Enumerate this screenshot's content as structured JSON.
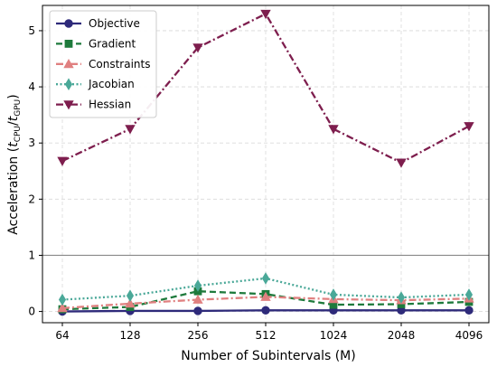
{
  "chart_data": {
    "type": "line",
    "xlabel": "Number of Subintervals (M)",
    "ylabel": "Acceleration (t_CPU / t_GPU)",
    "ylabel_parts": {
      "prefix": "Acceleration (",
      "t1": "t",
      "s1": "CPU",
      "slash": "/",
      "t2": "t",
      "s2": "GPU",
      "suffix": ")"
    },
    "categories": [
      "64",
      "128",
      "256",
      "512",
      "1024",
      "2048",
      "4096"
    ],
    "ylim": [
      -0.2,
      5.45
    ],
    "yticks": [
      "0",
      "1",
      "2",
      "3",
      "4",
      "5"
    ],
    "reference_line": 1,
    "grid": true,
    "legend_position": "top-left",
    "series": [
      {
        "name": "Objective",
        "color": "#2e2a7a",
        "dash": "",
        "marker": "circle",
        "values": [
          0.0,
          0.01,
          0.01,
          0.02,
          0.02,
          0.02,
          0.02
        ]
      },
      {
        "name": "Gradient",
        "color": "#1e7a3c",
        "dash": "7 4",
        "marker": "square",
        "values": [
          0.04,
          0.08,
          0.36,
          0.31,
          0.12,
          0.13,
          0.17
        ]
      },
      {
        "name": "Constraints",
        "color": "#e08080",
        "dash": "8 3 2 3",
        "marker": "triangle-up",
        "values": [
          0.06,
          0.14,
          0.21,
          0.26,
          0.22,
          0.2,
          0.23
        ]
      },
      {
        "name": "Jacobian",
        "color": "#4aa898",
        "dash": "2 2.5",
        "marker": "diamond",
        "values": [
          0.21,
          0.28,
          0.46,
          0.59,
          0.3,
          0.25,
          0.3
        ]
      },
      {
        "name": "Hessian",
        "color": "#7e1e4e",
        "dash": "8 3 2 3",
        "marker": "triangle-down",
        "values": [
          2.68,
          3.25,
          4.7,
          5.3,
          3.25,
          2.65,
          3.3
        ]
      }
    ]
  }
}
